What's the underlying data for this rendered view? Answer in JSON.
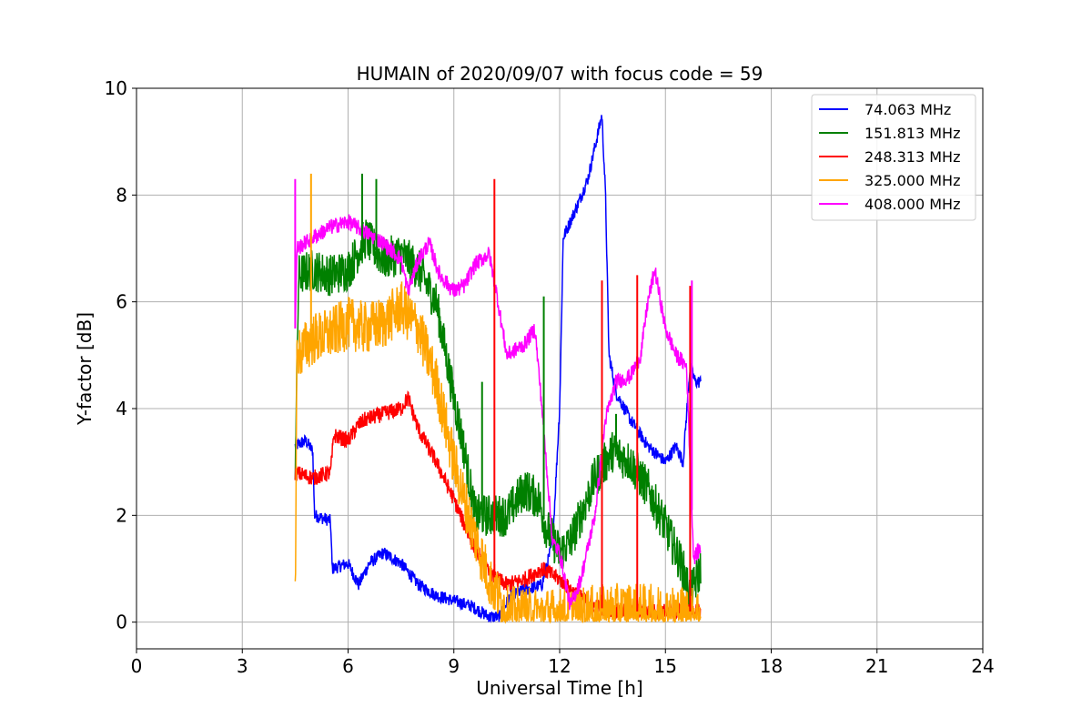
{
  "chart_data": {
    "type": "line",
    "title": "HUMAIN of 2020/09/07 with focus code = 59",
    "xlabel": "Universal Time [h]",
    "ylabel": "Y-factor [dB]",
    "xlim": [
      0,
      24
    ],
    "ylim": [
      -0.5,
      10
    ],
    "xticks": [
      0,
      3,
      6,
      9,
      12,
      15,
      18,
      21,
      24
    ],
    "yticks": [
      0,
      2,
      4,
      6,
      8,
      10
    ],
    "grid": true,
    "legend_position": "top-right",
    "series": [
      {
        "name": " 74.063 MHz",
        "color": "#0000ff",
        "noise": 0.12,
        "points": [
          [
            4.5,
            3.3
          ],
          [
            4.8,
            3.4
          ],
          [
            5.0,
            3.2
          ],
          [
            5.05,
            2.0
          ],
          [
            5.5,
            1.9
          ],
          [
            5.55,
            1.0
          ],
          [
            6.0,
            1.1
          ],
          [
            6.3,
            0.7
          ],
          [
            6.6,
            1.1
          ],
          [
            7.0,
            1.3
          ],
          [
            7.5,
            1.1
          ],
          [
            8.0,
            0.7
          ],
          [
            8.5,
            0.5
          ],
          [
            9.0,
            0.4
          ],
          [
            9.5,
            0.3
          ],
          [
            10.0,
            0.1
          ],
          [
            10.3,
            0.1
          ],
          [
            10.6,
            0.5
          ],
          [
            11.0,
            0.6
          ],
          [
            11.5,
            0.7
          ],
          [
            11.8,
            1.5
          ],
          [
            12.0,
            4.0
          ],
          [
            12.1,
            7.2
          ],
          [
            12.5,
            7.8
          ],
          [
            12.8,
            8.3
          ],
          [
            13.0,
            8.9
          ],
          [
            13.2,
            9.5
          ],
          [
            13.3,
            8.0
          ],
          [
            13.4,
            5.0
          ],
          [
            13.6,
            4.3
          ],
          [
            14.0,
            3.8
          ],
          [
            14.5,
            3.3
          ],
          [
            15.0,
            3.0
          ],
          [
            15.3,
            3.3
          ],
          [
            15.5,
            3.0
          ],
          [
            15.7,
            4.8
          ],
          [
            15.85,
            4.5
          ],
          [
            16.0,
            4.5
          ]
        ]
      },
      {
        "name": "151.813 MHz",
        "color": "#008000",
        "noise": 0.4,
        "points": [
          [
            4.5,
            3.0
          ],
          [
            4.6,
            6.5
          ],
          [
            5.0,
            6.6
          ],
          [
            5.5,
            6.5
          ],
          [
            6.0,
            6.6
          ],
          [
            6.5,
            7.2
          ],
          [
            7.0,
            6.8
          ],
          [
            7.5,
            6.9
          ],
          [
            8.0,
            6.6
          ],
          [
            8.5,
            6.0
          ],
          [
            9.0,
            4.2
          ],
          [
            9.3,
            3.2
          ],
          [
            9.6,
            2.0
          ],
          [
            10.0,
            2.0
          ],
          [
            10.5,
            2.0
          ],
          [
            11.0,
            2.5
          ],
          [
            11.4,
            2.3
          ],
          [
            11.6,
            1.8
          ],
          [
            12.0,
            1.3
          ],
          [
            12.3,
            1.5
          ],
          [
            12.6,
            2.0
          ],
          [
            13.0,
            2.7
          ],
          [
            13.5,
            3.2
          ],
          [
            14.0,
            3.0
          ],
          [
            14.5,
            2.5
          ],
          [
            15.0,
            1.8
          ],
          [
            15.5,
            1.0
          ],
          [
            15.7,
            0.5
          ],
          [
            16.0,
            1.0
          ]
        ]
      },
      {
        "name": "248.313 MHz",
        "color": "#ff0000",
        "noise": 0.15,
        "points": [
          [
            4.5,
            2.8
          ],
          [
            5.0,
            2.7
          ],
          [
            5.5,
            2.8
          ],
          [
            5.6,
            3.5
          ],
          [
            6.0,
            3.4
          ],
          [
            6.3,
            3.7
          ],
          [
            6.5,
            3.8
          ],
          [
            7.0,
            3.9
          ],
          [
            7.5,
            4.0
          ],
          [
            7.7,
            4.2
          ],
          [
            8.0,
            3.6
          ],
          [
            8.5,
            3.0
          ],
          [
            9.0,
            2.3
          ],
          [
            9.5,
            1.5
          ],
          [
            10.0,
            0.9
          ],
          [
            10.5,
            0.7
          ],
          [
            11.0,
            0.8
          ],
          [
            11.5,
            1.0
          ],
          [
            12.0,
            0.8
          ],
          [
            12.5,
            0.5
          ],
          [
            13.0,
            0.3
          ],
          [
            13.5,
            0.2
          ],
          [
            14.0,
            0.2
          ],
          [
            14.5,
            0.2
          ],
          [
            15.0,
            0.2
          ],
          [
            15.5,
            0.2
          ],
          [
            16.0,
            0.2
          ]
        ]
      },
      {
        "name": "325.000 MHz",
        "color": "#ffa500",
        "noise": 0.5,
        "points": [
          [
            4.5,
            0.4
          ],
          [
            4.55,
            5.0
          ],
          [
            5.0,
            5.3
          ],
          [
            5.5,
            5.4
          ],
          [
            6.0,
            5.6
          ],
          [
            6.5,
            5.5
          ],
          [
            7.0,
            5.6
          ],
          [
            7.5,
            5.9
          ],
          [
            8.0,
            5.5
          ],
          [
            8.5,
            4.5
          ],
          [
            9.0,
            3.0
          ],
          [
            9.5,
            1.8
          ],
          [
            10.0,
            0.8
          ],
          [
            10.5,
            0.2
          ],
          [
            11.0,
            0.15
          ],
          [
            12.0,
            0.15
          ],
          [
            13.0,
            0.2
          ],
          [
            14.0,
            0.25
          ],
          [
            15.0,
            0.2
          ],
          [
            15.5,
            0.2
          ],
          [
            16.0,
            0.15
          ]
        ]
      },
      {
        "name": "408.000 MHz",
        "color": "#ff00ff",
        "noise": 0.15,
        "points": [
          [
            4.5,
            5.5
          ],
          [
            4.55,
            7.0
          ],
          [
            5.0,
            7.2
          ],
          [
            5.5,
            7.4
          ],
          [
            6.0,
            7.5
          ],
          [
            6.5,
            7.3
          ],
          [
            7.0,
            7.1
          ],
          [
            7.5,
            6.8
          ],
          [
            7.7,
            6.2
          ],
          [
            8.0,
            6.8
          ],
          [
            8.3,
            7.1
          ],
          [
            8.6,
            6.5
          ],
          [
            9.0,
            6.2
          ],
          [
            9.3,
            6.3
          ],
          [
            9.6,
            6.7
          ],
          [
            10.0,
            6.9
          ],
          [
            10.2,
            6.2
          ],
          [
            10.5,
            5.0
          ],
          [
            11.0,
            5.2
          ],
          [
            11.3,
            5.5
          ],
          [
            11.5,
            4.0
          ],
          [
            11.8,
            1.5
          ],
          [
            12.0,
            1.3
          ],
          [
            12.3,
            0.3
          ],
          [
            12.6,
            0.8
          ],
          [
            13.0,
            2.0
          ],
          [
            13.3,
            3.8
          ],
          [
            13.6,
            4.5
          ],
          [
            14.0,
            4.6
          ],
          [
            14.3,
            5.0
          ],
          [
            14.5,
            6.0
          ],
          [
            14.7,
            6.6
          ],
          [
            15.0,
            5.5
          ],
          [
            15.3,
            5.0
          ],
          [
            15.6,
            4.8
          ],
          [
            15.8,
            1.2
          ],
          [
            16.0,
            1.4
          ]
        ]
      }
    ],
    "spikes": [
      {
        "series": 1,
        "x": 6.4,
        "y": 8.4
      },
      {
        "series": 1,
        "x": 6.8,
        "y": 8.3
      },
      {
        "series": 1,
        "x": 9.8,
        "y": 4.5
      },
      {
        "series": 1,
        "x": 11.55,
        "y": 6.1
      },
      {
        "series": 1,
        "x": 13.6,
        "y": 3.9
      },
      {
        "series": 2,
        "x": 10.15,
        "y": 8.3
      },
      {
        "series": 2,
        "x": 13.2,
        "y": 6.4
      },
      {
        "series": 2,
        "x": 14.2,
        "y": 6.5
      },
      {
        "series": 2,
        "x": 15.7,
        "y": 6.3
      },
      {
        "series": 3,
        "x": 4.95,
        "y": 8.4
      },
      {
        "series": 4,
        "x": 4.5,
        "y": 8.3
      },
      {
        "series": 4,
        "x": 15.75,
        "y": 6.4
      }
    ]
  }
}
